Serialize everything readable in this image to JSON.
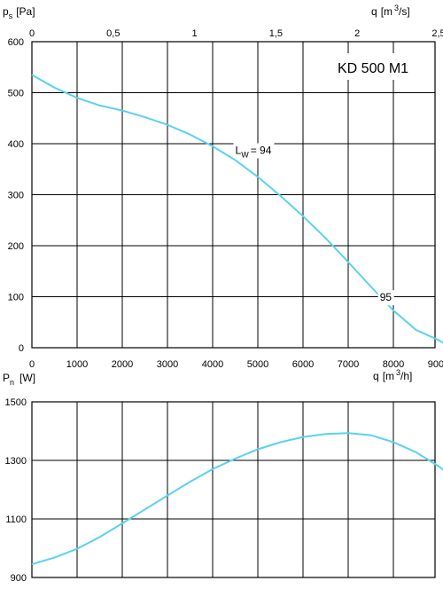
{
  "chart_data": [
    {
      "type": "line",
      "title": "KD 500 M1",
      "top_axis": {
        "label_main": "q",
        "label_unit": "[m",
        "label_sup": "3",
        "label_tail": "/s]",
        "ticks": [
          "0",
          "0,5",
          "1",
          "1,5",
          "2",
          "2,5"
        ]
      },
      "x_axis": {
        "label_main": "q",
        "label_unit": "[m",
        "label_sup": "3",
        "label_tail": "/h]",
        "ticks": [
          "0",
          "1000",
          "2000",
          "3000",
          "4000",
          "5000",
          "6000",
          "7000",
          "8000",
          "9000"
        ],
        "range": [
          0,
          9000
        ]
      },
      "y_axis": {
        "label_main": "p",
        "label_sub": "s",
        "label_unit": "[Pa]",
        "ticks": [
          "0",
          "100",
          "200",
          "300",
          "400",
          "500",
          "600"
        ],
        "range": [
          0,
          600
        ]
      },
      "grid": true,
      "series": [
        {
          "color": "#5ad2f0",
          "x": [
            0,
            500,
            1000,
            1500,
            2000,
            2500,
            3000,
            3500,
            4000,
            4500,
            5000,
            5500,
            6000,
            6500,
            7000,
            7500,
            8000,
            8500,
            9000,
            9300
          ],
          "y": [
            535,
            510,
            490,
            475,
            465,
            452,
            437,
            418,
            395,
            368,
            335,
            298,
            258,
            215,
            168,
            120,
            73,
            35,
            15,
            0
          ]
        }
      ],
      "annotations": [
        {
          "main": "L",
          "sub": "W",
          "tail": "= 94",
          "x": 4500,
          "y": 380
        },
        {
          "main": "95",
          "sub": "",
          "tail": "",
          "x": 7700,
          "y": 92
        }
      ]
    },
    {
      "type": "line",
      "x_axis": {
        "ticks": [],
        "range": [
          0,
          9000
        ]
      },
      "y_axis": {
        "label_main": "P",
        "label_sub": "n",
        "label_unit": "[W]",
        "ticks": [
          "900",
          "1100",
          "1300",
          "1500"
        ],
        "range": [
          900,
          1500
        ]
      },
      "grid": true,
      "series": [
        {
          "color": "#5ad2f0",
          "x": [
            0,
            500,
            1000,
            1500,
            2000,
            2500,
            3000,
            3500,
            4000,
            4500,
            5000,
            5500,
            6000,
            6500,
            7000,
            7500,
            8000,
            8500,
            9000,
            9300
          ],
          "y": [
            945,
            968,
            998,
            1038,
            1085,
            1132,
            1180,
            1227,
            1270,
            1306,
            1338,
            1362,
            1380,
            1390,
            1393,
            1386,
            1362,
            1328,
            1280,
            1245
          ]
        }
      ]
    }
  ]
}
